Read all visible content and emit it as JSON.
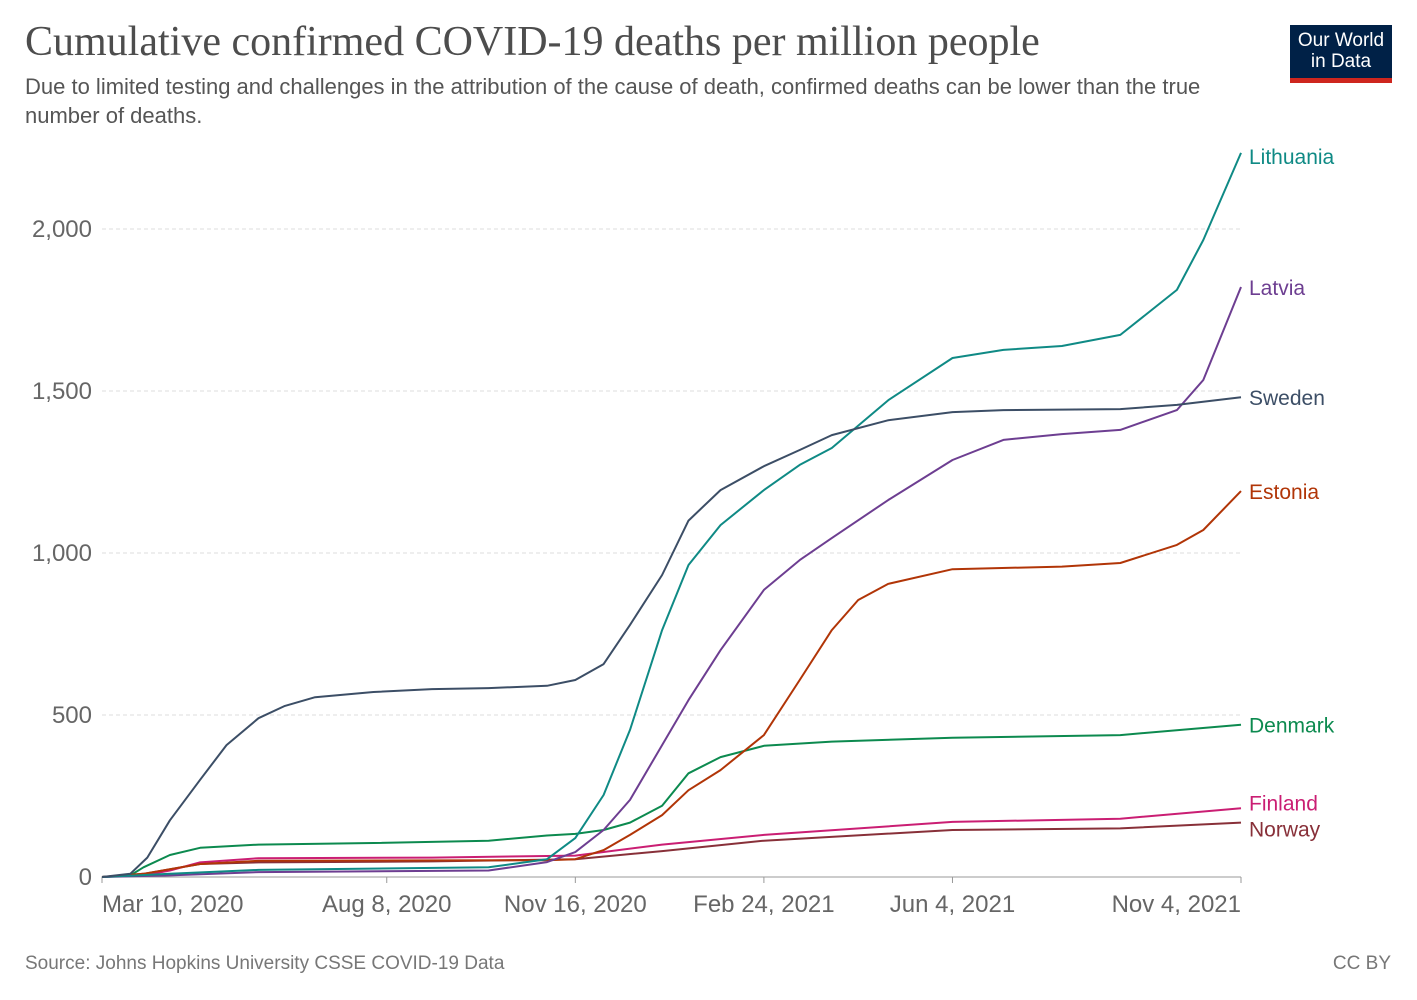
{
  "logo": {
    "line1": "Our World",
    "line2": "in Data"
  },
  "footer": {
    "source": "Source: Johns Hopkins University CSSE COVID-19 Data",
    "license": "CC BY"
  },
  "chart_data": {
    "type": "line",
    "title": "Cumulative confirmed COVID-19 deaths per million people",
    "subtitle": "Due to limited testing and challenges in the attribution of the cause of death, confirmed deaths can be lower than the true number of deaths.",
    "xlim": [
      "2020-03-10",
      "2021-11-04"
    ],
    "ylim": [
      0,
      2250
    ],
    "grid": "horizontal dashed",
    "legend": "line-end labels, right",
    "x_ticks": [
      {
        "date": "2020-03-10",
        "label": "Mar 10, 2020"
      },
      {
        "date": "2020-08-08",
        "label": "Aug 8, 2020"
      },
      {
        "date": "2020-11-16",
        "label": "Nov 16, 2020"
      },
      {
        "date": "2021-02-24",
        "label": "Feb 24, 2021"
      },
      {
        "date": "2021-06-04",
        "label": "Jun 4, 2021"
      },
      {
        "date": "2021-11-04",
        "label": "Nov 4, 2021"
      }
    ],
    "y_ticks": [
      {
        "v": 0,
        "label": "0"
      },
      {
        "v": 500,
        "label": "500"
      },
      {
        "v": 1000,
        "label": "1,000"
      },
      {
        "v": 1500,
        "label": "1,500"
      },
      {
        "v": 2000,
        "label": "2,000"
      }
    ],
    "series": [
      {
        "name": "Norway",
        "color": "#883039",
        "points": [
          [
            "2020-03-10",
            0
          ],
          [
            "2020-04-01",
            10
          ],
          [
            "2020-05-01",
            40
          ],
          [
            "2020-06-01",
            45
          ],
          [
            "2020-09-01",
            48
          ],
          [
            "2020-11-16",
            55
          ],
          [
            "2021-01-01",
            80
          ],
          [
            "2021-02-24",
            112
          ],
          [
            "2021-06-04",
            145
          ],
          [
            "2021-09-01",
            150
          ],
          [
            "2021-11-04",
            168
          ]
        ]
      },
      {
        "name": "Finland",
        "color": "#ca1e73",
        "points": [
          [
            "2020-03-10",
            0
          ],
          [
            "2020-04-01",
            5
          ],
          [
            "2020-04-15",
            20
          ],
          [
            "2020-05-01",
            45
          ],
          [
            "2020-06-01",
            58
          ],
          [
            "2020-09-01",
            60
          ],
          [
            "2020-11-16",
            66
          ],
          [
            "2021-01-01",
            100
          ],
          [
            "2021-02-24",
            130
          ],
          [
            "2021-06-04",
            170
          ],
          [
            "2021-09-01",
            180
          ],
          [
            "2021-11-04",
            212
          ]
        ]
      },
      {
        "name": "Denmark",
        "color": "#0c8a4f",
        "points": [
          [
            "2020-03-10",
            0
          ],
          [
            "2020-03-25",
            5
          ],
          [
            "2020-04-01",
            30
          ],
          [
            "2020-04-15",
            68
          ],
          [
            "2020-05-01",
            90
          ],
          [
            "2020-06-01",
            100
          ],
          [
            "2020-08-01",
            105
          ],
          [
            "2020-10-01",
            112
          ],
          [
            "2020-11-01",
            128
          ],
          [
            "2020-11-16",
            133
          ],
          [
            "2020-12-01",
            145
          ],
          [
            "2020-12-15",
            168
          ],
          [
            "2021-01-01",
            220
          ],
          [
            "2021-01-15",
            320
          ],
          [
            "2021-02-01",
            370
          ],
          [
            "2021-02-24",
            405
          ],
          [
            "2021-04-01",
            418
          ],
          [
            "2021-06-04",
            430
          ],
          [
            "2021-09-01",
            438
          ],
          [
            "2021-11-04",
            470
          ]
        ]
      },
      {
        "name": "Estonia",
        "color": "#b13507",
        "points": [
          [
            "2020-03-10",
            0
          ],
          [
            "2020-04-01",
            10
          ],
          [
            "2020-05-01",
            40
          ],
          [
            "2020-06-01",
            50
          ],
          [
            "2020-11-01",
            52
          ],
          [
            "2020-11-16",
            55
          ],
          [
            "2020-12-01",
            83
          ],
          [
            "2020-12-15",
            130
          ],
          [
            "2021-01-01",
            191
          ],
          [
            "2021-01-15",
            268
          ],
          [
            "2021-02-01",
            330
          ],
          [
            "2021-02-24",
            438
          ],
          [
            "2021-03-15",
            608
          ],
          [
            "2021-04-01",
            762
          ],
          [
            "2021-04-15",
            855
          ],
          [
            "2021-05-01",
            905
          ],
          [
            "2021-06-04",
            950
          ],
          [
            "2021-08-01",
            958
          ],
          [
            "2021-09-01",
            969
          ],
          [
            "2021-10-01",
            1025
          ],
          [
            "2021-10-15",
            1071
          ],
          [
            "2021-11-04",
            1191
          ]
        ]
      },
      {
        "name": "Latvia",
        "color": "#6d3e91",
        "points": [
          [
            "2020-03-10",
            0
          ],
          [
            "2020-04-15",
            5
          ],
          [
            "2020-06-01",
            15
          ],
          [
            "2020-10-01",
            20
          ],
          [
            "2020-11-01",
            46
          ],
          [
            "2020-11-16",
            77
          ],
          [
            "2020-12-01",
            145
          ],
          [
            "2020-12-15",
            238
          ],
          [
            "2021-01-01",
            407
          ],
          [
            "2021-01-15",
            546
          ],
          [
            "2021-02-01",
            700
          ],
          [
            "2021-02-24",
            886
          ],
          [
            "2021-03-15",
            978
          ],
          [
            "2021-04-01",
            1046
          ],
          [
            "2021-05-01",
            1164
          ],
          [
            "2021-06-04",
            1287
          ],
          [
            "2021-07-01",
            1349
          ],
          [
            "2021-08-01",
            1367
          ],
          [
            "2021-09-01",
            1380
          ],
          [
            "2021-10-01",
            1441
          ],
          [
            "2021-10-15",
            1534
          ],
          [
            "2021-11-04",
            1821
          ]
        ]
      },
      {
        "name": "Lithuania",
        "color": "#0f8a85",
        "points": [
          [
            "2020-03-10",
            0
          ],
          [
            "2020-04-15",
            10
          ],
          [
            "2020-06-01",
            22
          ],
          [
            "2020-10-01",
            30
          ],
          [
            "2020-11-01",
            55
          ],
          [
            "2020-11-16",
            120
          ],
          [
            "2020-12-01",
            253
          ],
          [
            "2020-12-15",
            454
          ],
          [
            "2021-01-01",
            762
          ],
          [
            "2021-01-15",
            963
          ],
          [
            "2021-02-01",
            1086
          ],
          [
            "2021-02-24",
            1194
          ],
          [
            "2021-03-15",
            1272
          ],
          [
            "2021-04-01",
            1324
          ],
          [
            "2021-05-01",
            1472
          ],
          [
            "2021-06-04",
            1602
          ],
          [
            "2021-07-01",
            1627
          ],
          [
            "2021-08-01",
            1639
          ],
          [
            "2021-09-01",
            1673
          ],
          [
            "2021-10-01",
            1812
          ],
          [
            "2021-10-15",
            1966
          ],
          [
            "2021-11-04",
            2235
          ]
        ]
      },
      {
        "name": "Sweden",
        "color": "#3c4e66",
        "points": [
          [
            "2020-03-10",
            0
          ],
          [
            "2020-03-25",
            10
          ],
          [
            "2020-04-03",
            60
          ],
          [
            "2020-04-15",
            175
          ],
          [
            "2020-05-01",
            300
          ],
          [
            "2020-05-15",
            407
          ],
          [
            "2020-06-01",
            490
          ],
          [
            "2020-06-15",
            528
          ],
          [
            "2020-07-01",
            555
          ],
          [
            "2020-08-01",
            571
          ],
          [
            "2020-09-01",
            580
          ],
          [
            "2020-10-01",
            583
          ],
          [
            "2020-11-01",
            590
          ],
          [
            "2020-11-16",
            608
          ],
          [
            "2020-12-01",
            657
          ],
          [
            "2020-12-15",
            778
          ],
          [
            "2021-01-01",
            932
          ],
          [
            "2021-01-15",
            1100
          ],
          [
            "2021-02-01",
            1194
          ],
          [
            "2021-02-24",
            1268
          ],
          [
            "2021-03-15",
            1318
          ],
          [
            "2021-04-01",
            1364
          ],
          [
            "2021-05-01",
            1410
          ],
          [
            "2021-06-04",
            1435
          ],
          [
            "2021-07-01",
            1441
          ],
          [
            "2021-09-01",
            1444
          ],
          [
            "2021-10-01",
            1457
          ],
          [
            "2021-11-04",
            1481
          ]
        ]
      }
    ],
    "end_labels": [
      {
        "name": "Lithuania",
        "label": "Lithuania"
      },
      {
        "name": "Latvia",
        "label": "Latvia"
      },
      {
        "name": "Sweden",
        "label": "Sweden"
      },
      {
        "name": "Estonia",
        "label": "Estonia"
      },
      {
        "name": "Denmark",
        "label": "Denmark"
      },
      {
        "name": "Finland",
        "label": "Finland"
      },
      {
        "name": "Norway",
        "label": "Norway"
      }
    ]
  }
}
